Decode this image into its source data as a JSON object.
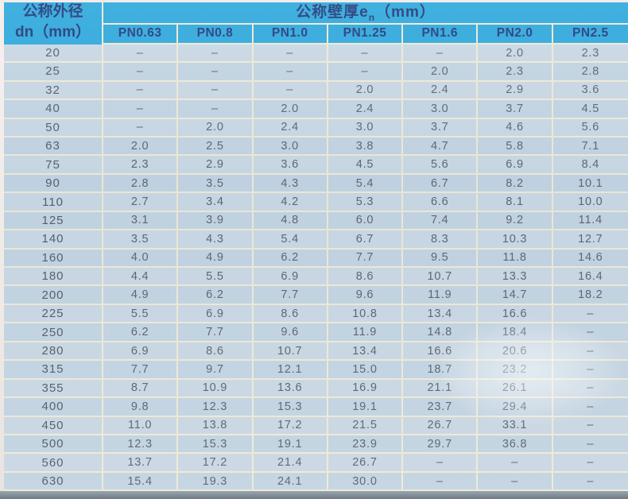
{
  "table": {
    "left_header": {
      "line1": "公称外径",
      "line2": "dn（mm）"
    },
    "top_header": {
      "prefix": "公称壁厚e",
      "subscript": "n",
      "suffix": "（mm）"
    },
    "columns": [
      "PN0.63",
      "PN0.8",
      "PN1.0",
      "PN1.25",
      "PN1.6",
      "PN2.0",
      "PN2.5"
    ],
    "rows": [
      {
        "dn": "20",
        "values": [
          "–",
          "–",
          "–",
          "–",
          "–",
          "2.0",
          "2.3"
        ]
      },
      {
        "dn": "25",
        "values": [
          "–",
          "–",
          "–",
          "–",
          "2.0",
          "2.3",
          "2.8"
        ]
      },
      {
        "dn": "32",
        "values": [
          "–",
          "–",
          "–",
          "2.0",
          "2.4",
          "2.9",
          "3.6"
        ]
      },
      {
        "dn": "40",
        "values": [
          "–",
          "–",
          "2.0",
          "2.4",
          "3.0",
          "3.7",
          "4.5"
        ]
      },
      {
        "dn": "50",
        "values": [
          "–",
          "2.0",
          "2.4",
          "3.0",
          "3.7",
          "4.6",
          "5.6"
        ]
      },
      {
        "dn": "63",
        "values": [
          "2.0",
          "2.5",
          "3.0",
          "3.8",
          "4.7",
          "5.8",
          "7.1"
        ]
      },
      {
        "dn": "75",
        "values": [
          "2.3",
          "2.9",
          "3.6",
          "4.5",
          "5.6",
          "6.9",
          "8.4"
        ]
      },
      {
        "dn": "90",
        "values": [
          "2.8",
          "3.5",
          "4.3",
          "5.4",
          "6.7",
          "8.2",
          "10.1"
        ]
      },
      {
        "dn": "110",
        "values": [
          "2.7",
          "3.4",
          "4.2",
          "5.3",
          "6.6",
          "8.1",
          "10.0"
        ]
      },
      {
        "dn": "125",
        "values": [
          "3.1",
          "3.9",
          "4.8",
          "6.0",
          "7.4",
          "9.2",
          "11.4"
        ]
      },
      {
        "dn": "140",
        "values": [
          "3.5",
          "4.3",
          "5.4",
          "6.7",
          "8.3",
          "10.3",
          "12.7"
        ]
      },
      {
        "dn": "160",
        "values": [
          "4.0",
          "4.9",
          "6.2",
          "7.7",
          "9.5",
          "11.8",
          "14.6"
        ]
      },
      {
        "dn": "180",
        "values": [
          "4.4",
          "5.5",
          "6.9",
          "8.6",
          "10.7",
          "13.3",
          "16.4"
        ]
      },
      {
        "dn": "200",
        "values": [
          "4.9",
          "6.2",
          "7.7",
          "9.6",
          "11.9",
          "14.7",
          "18.2"
        ]
      },
      {
        "dn": "225",
        "values": [
          "5.5",
          "6.9",
          "8.6",
          "10.8",
          "13.4",
          "16.6",
          "–"
        ]
      },
      {
        "dn": "250",
        "values": [
          "6.2",
          "7.7",
          "9.6",
          "11.9",
          "14.8",
          "18.4",
          "–"
        ]
      },
      {
        "dn": "280",
        "values": [
          "6.9",
          "8.6",
          "10.7",
          "13.4",
          "16.6",
          "20.6",
          "–"
        ]
      },
      {
        "dn": "315",
        "values": [
          "7.7",
          "9.7",
          "12.1",
          "15.0",
          "18.7",
          "23.2",
          "–"
        ]
      },
      {
        "dn": "355",
        "values": [
          "8.7",
          "10.9",
          "13.6",
          "16.9",
          "21.1",
          "26.1",
          "–"
        ]
      },
      {
        "dn": "400",
        "values": [
          "9.8",
          "12.3",
          "15.3",
          "19.1",
          "23.7",
          "29.4",
          "–"
        ]
      },
      {
        "dn": "450",
        "values": [
          "11.0",
          "13.8",
          "17.2",
          "21.5",
          "26.7",
          "33.1",
          "–"
        ]
      },
      {
        "dn": "500",
        "values": [
          "12.3",
          "15.3",
          "19.1",
          "23.9",
          "29.7",
          "36.8",
          "–"
        ]
      },
      {
        "dn": "560",
        "values": [
          "13.7",
          "17.2",
          "21.4",
          "26.7",
          "–",
          "–",
          "–"
        ]
      },
      {
        "dn": "630",
        "values": [
          "15.4",
          "19.3",
          "24.1",
          "30.0",
          "–",
          "–",
          "–"
        ]
      }
    ],
    "colors": {
      "header_bg": "#2ba7dc",
      "header_text": "#1f3878",
      "row_bg": "#c9d7e3",
      "grid_line": "#efe9d4",
      "cell_text": "#57636f"
    }
  }
}
